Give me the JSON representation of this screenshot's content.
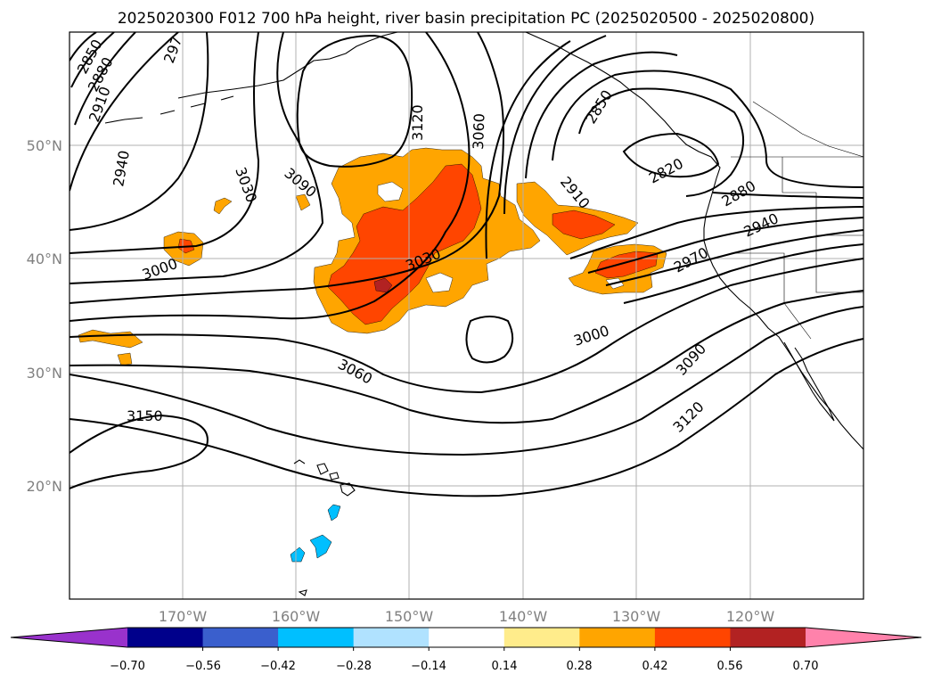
{
  "title": "2025020300 F012 700 hPa height, river basin precipitation PC (2025020500 - 2025020800)",
  "map": {
    "lat_labels": [
      "50°N",
      "40°N",
      "30°N",
      "20°N"
    ],
    "lon_labels": [
      "170°W",
      "160°W",
      "150°W",
      "140°W",
      "130°W",
      "120°W"
    ],
    "contour_color": "#000000",
    "contour_labels": [
      "2850",
      "2880",
      "2910",
      "297",
      "2940",
      "3030",
      "3090",
      "3120",
      "3060",
      "2850",
      "2910",
      "2820",
      "2880",
      "2940",
      "2970",
      "3000",
      "3030",
      "3000",
      "3060",
      "3090",
      "3120",
      "3150"
    ]
  },
  "colorbar": {
    "tick_labels": [
      "−0.70",
      "−0.56",
      "−0.42",
      "−0.28",
      "−0.14",
      "0.14",
      "0.28",
      "0.42",
      "0.56",
      "0.70"
    ],
    "colors": [
      "#9932cc",
      "#00008b",
      "#3a5fcd",
      "#00bfff",
      "#b0e2ff",
      "#ffffff",
      "#ffec8b",
      "#ffa500",
      "#ff4500",
      "#b22222",
      "#ff82ab"
    ]
  }
}
